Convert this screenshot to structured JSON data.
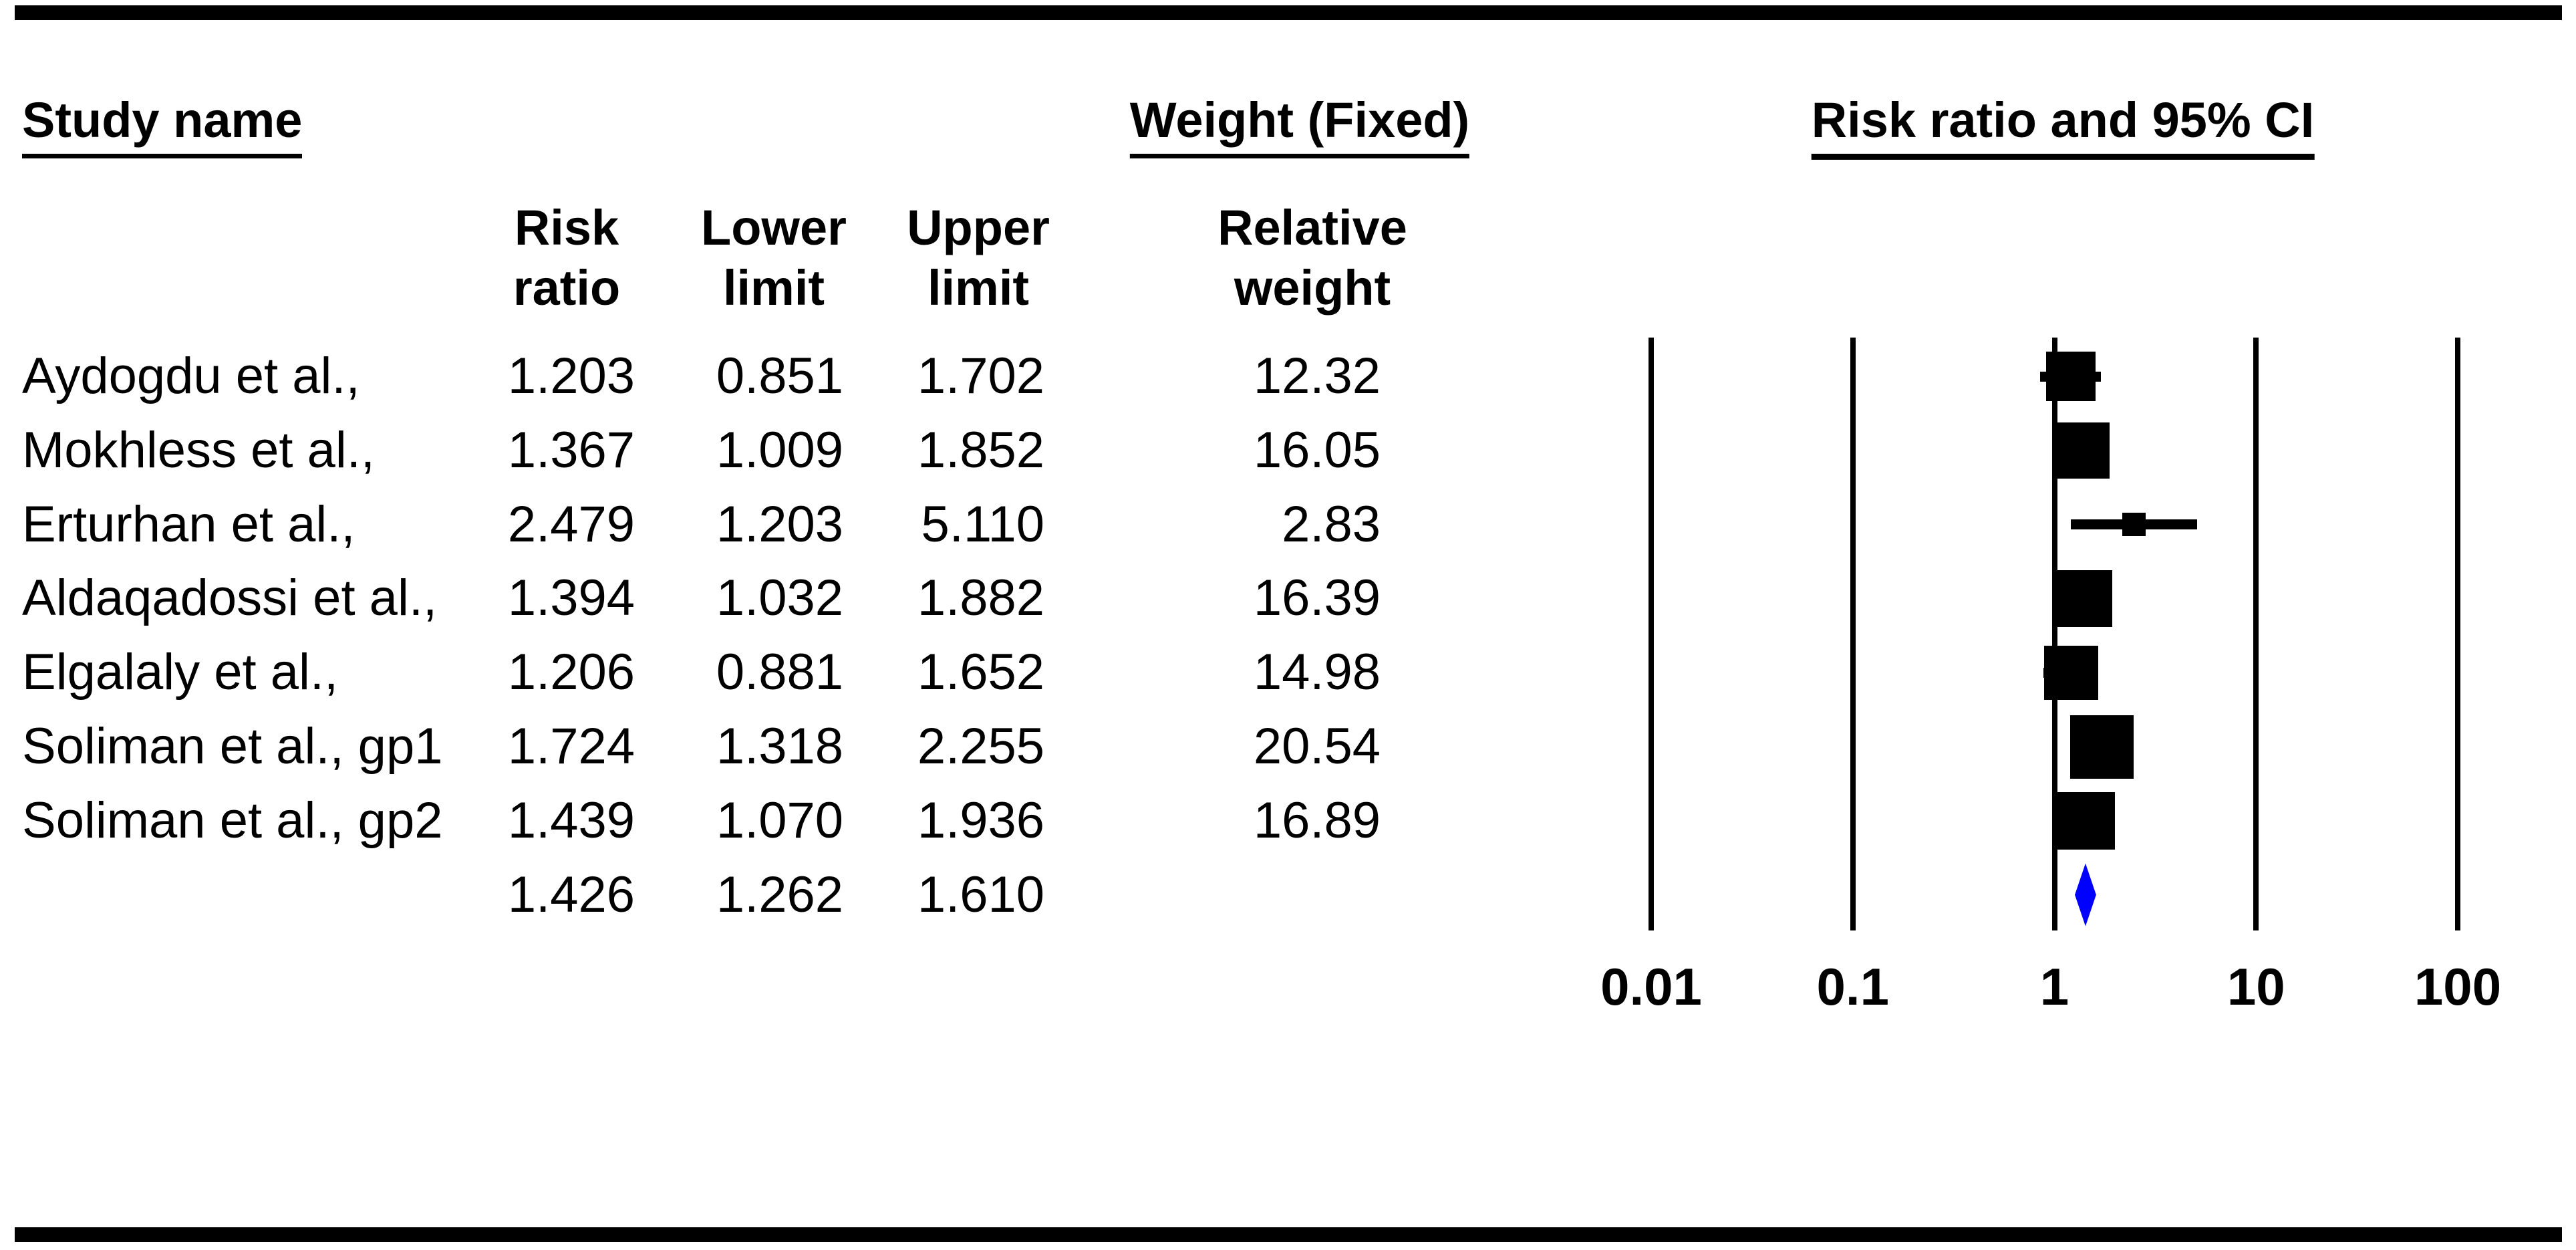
{
  "figure": {
    "header_study": "Study name",
    "header_weight": "Weight (Fixed)",
    "header_plot": "Risk ratio and 95% CI",
    "subheaders": {
      "risk_ratio": "Risk\nratio",
      "lower_limit": "Lower\nlimit",
      "upper_limit": "Upper\nlimit",
      "relative_weight": "Relative\nweight"
    }
  },
  "chart_data": {
    "type": "forest",
    "effect_measure": "Risk ratio",
    "model": "Fixed",
    "title": "Risk ratio and 95% CI",
    "columns": [
      "Risk ratio",
      "Lower limit",
      "Upper limit",
      "Relative weight"
    ],
    "x_scale": "log10",
    "x_ticks": [
      "0.01",
      "0.1",
      "1",
      "10",
      "100"
    ],
    "x_range": [
      0.01,
      100
    ],
    "grid": "vertical-reference-lines",
    "studies": [
      {
        "name": "Aydogdu et al.,",
        "risk_ratio": 1.203,
        "lower": 0.851,
        "upper": 1.702,
        "weight": 12.32
      },
      {
        "name": "Mokhless et al.,",
        "risk_ratio": 1.367,
        "lower": 1.009,
        "upper": 1.852,
        "weight": 16.05
      },
      {
        "name": "Erturhan et al.,",
        "risk_ratio": 2.479,
        "lower": 1.203,
        "upper": 5.11,
        "weight": 2.83
      },
      {
        "name": "Aldaqadossi et al.,",
        "risk_ratio": 1.394,
        "lower": 1.032,
        "upper": 1.882,
        "weight": 16.39
      },
      {
        "name": "Elgalaly et al.,",
        "risk_ratio": 1.206,
        "lower": 0.881,
        "upper": 1.652,
        "weight": 14.98
      },
      {
        "name": "Soliman et al., gp1",
        "risk_ratio": 1.724,
        "lower": 1.318,
        "upper": 2.255,
        "weight": 20.54
      },
      {
        "name": "Soliman et al., gp2",
        "risk_ratio": 1.439,
        "lower": 1.07,
        "upper": 1.936,
        "weight": 16.89
      }
    ],
    "summary": {
      "risk_ratio": 1.426,
      "lower": 1.262,
      "upper": 1.61
    },
    "colors": {
      "marker": "#000000",
      "summary_diamond": "#0000FF",
      "text": "#000000",
      "background": "#FFFFFF"
    }
  }
}
